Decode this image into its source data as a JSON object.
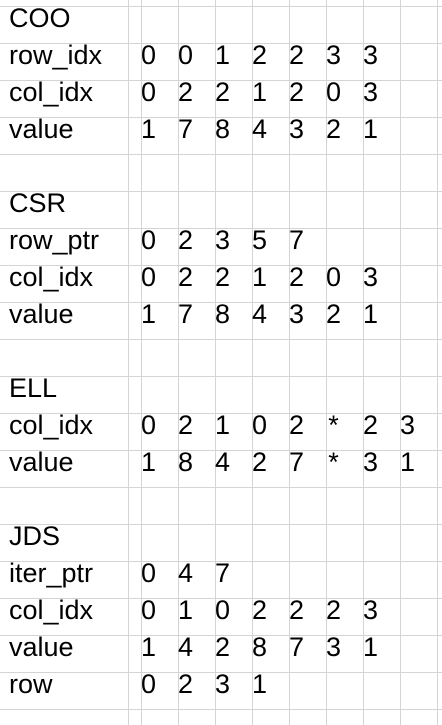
{
  "sections": [
    {
      "title": "COO",
      "rows": [
        {
          "label": "row_idx",
          "values": [
            "0",
            "0",
            "1",
            "2",
            "2",
            "3",
            "3"
          ]
        },
        {
          "label": "col_idx",
          "values": [
            "0",
            "2",
            "2",
            "1",
            "2",
            "0",
            "3"
          ]
        },
        {
          "label": "value",
          "values": [
            "1",
            "7",
            "8",
            "4",
            "3",
            "2",
            "1"
          ]
        }
      ]
    },
    {
      "title": "CSR",
      "rows": [
        {
          "label": "row_ptr",
          "values": [
            "0",
            "2",
            "3",
            "5",
            "7"
          ]
        },
        {
          "label": "col_idx",
          "values": [
            "0",
            "2",
            "2",
            "1",
            "2",
            "0",
            "3"
          ]
        },
        {
          "label": "value",
          "values": [
            "1",
            "7",
            "8",
            "4",
            "3",
            "2",
            "1"
          ]
        }
      ]
    },
    {
      "title": "ELL",
      "rows": [
        {
          "label": "col_idx",
          "values": [
            "0",
            "2",
            "1",
            "0",
            "2",
            "*",
            "2",
            "3"
          ]
        },
        {
          "label": "value",
          "values": [
            "1",
            "8",
            "4",
            "2",
            "7",
            "*",
            "3",
            "1"
          ]
        }
      ]
    },
    {
      "title": "JDS",
      "rows": [
        {
          "label": "iter_ptr",
          "values": [
            "0",
            "4",
            "7"
          ]
        },
        {
          "label": "col_idx",
          "values": [
            "0",
            "1",
            "0",
            "2",
            "2",
            "2",
            "3"
          ]
        },
        {
          "label": "value",
          "values": [
            "1",
            "4",
            "2",
            "8",
            "7",
            "3",
            "1"
          ]
        },
        {
          "label": "row",
          "values": [
            "0",
            "2",
            "3",
            "1"
          ]
        }
      ]
    }
  ]
}
